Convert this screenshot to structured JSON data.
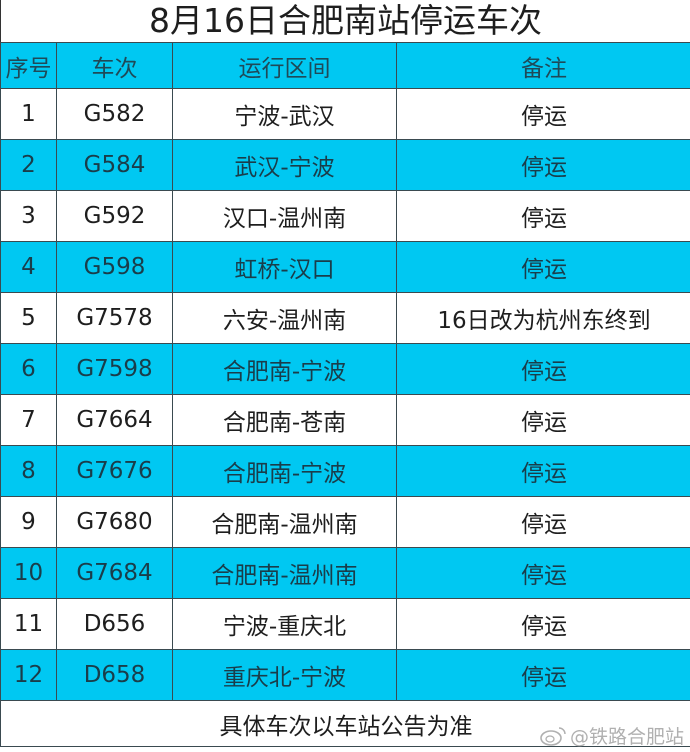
{
  "title": "8月16日合肥南站停运车次",
  "columns": [
    "序号",
    "车次",
    "运行区间",
    "备注"
  ],
  "colors": {
    "header_bg": "#00c8f2",
    "alt_row_bg": "#00c8f2",
    "border": "#3a4a50"
  },
  "rows": [
    {
      "no": "1",
      "train": "G582",
      "route": "宁波-武汉",
      "note": "停运"
    },
    {
      "no": "2",
      "train": "G584",
      "route": "武汉-宁波",
      "note": "停运"
    },
    {
      "no": "3",
      "train": "G592",
      "route": "汉口-温州南",
      "note": "停运"
    },
    {
      "no": "4",
      "train": "G598",
      "route": "虹桥-汉口",
      "note": "停运"
    },
    {
      "no": "5",
      "train": "G7578",
      "route": "六安-温州南",
      "note": "16日改为杭州东终到"
    },
    {
      "no": "6",
      "train": "G7598",
      "route": "合肥南-宁波",
      "note": "停运"
    },
    {
      "no": "7",
      "train": "G7664",
      "route": "合肥南-苍南",
      "note": "停运"
    },
    {
      "no": "8",
      "train": "G7676",
      "route": "合肥南-宁波",
      "note": "停运"
    },
    {
      "no": "9",
      "train": "G7680",
      "route": "合肥南-温州南",
      "note": "停运"
    },
    {
      "no": "10",
      "train": "G7684",
      "route": "合肥南-温州南",
      "note": "停运"
    },
    {
      "no": "11",
      "train": "D656",
      "route": "宁波-重庆北",
      "note": "停运"
    },
    {
      "no": "12",
      "train": "D658",
      "route": "重庆北-宁波",
      "note": "停运"
    }
  ],
  "footer": "具体车次以车站公告为准",
  "watermark": {
    "icon": "weibo-icon",
    "text": "@铁路合肥站"
  }
}
